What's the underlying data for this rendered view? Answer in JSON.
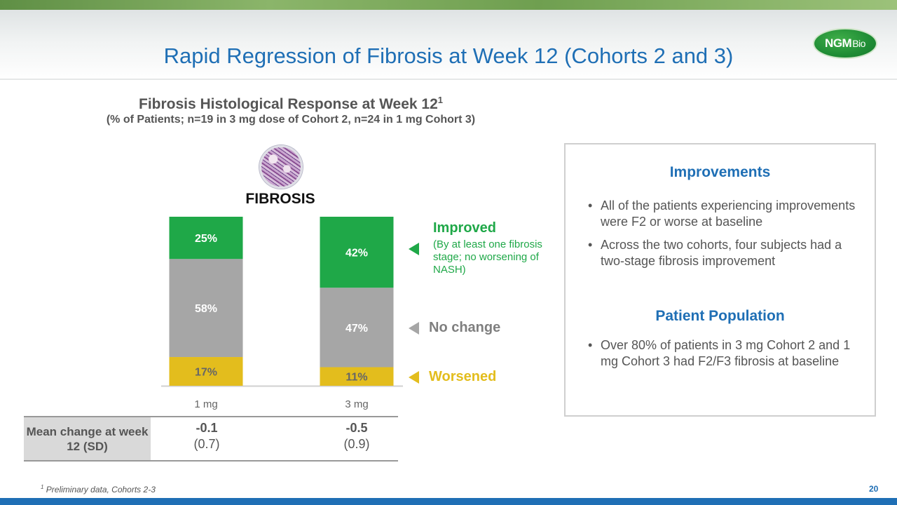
{
  "slide": {
    "title": "Rapid Regression of Fibrosis at Week 12 (Cohorts 2 and 3)",
    "logo_main": "NGM",
    "logo_suffix": "Bio",
    "page_number": "20",
    "footnote_marker": "1",
    "footnote": "Preliminary data, Cohorts 2-3"
  },
  "chart_data": {
    "type": "bar",
    "stacked": true,
    "title": "Fibrosis Histological Response at Week 12",
    "title_superscript": "1",
    "subtitle": "(% of Patients; n=19 in 3 mg dose of Cohort 2, n=24 in 1 mg Cohort 3)",
    "panel_label": "FIBROSIS",
    "categories": [
      "1 mg",
      "3 mg"
    ],
    "series": [
      {
        "name": "Worsened",
        "values": [
          17,
          11
        ],
        "labels": [
          "17%",
          "11%"
        ],
        "color": "#e3bd1d"
      },
      {
        "name": "No change",
        "values": [
          58,
          47
        ],
        "labels": [
          "58%",
          "47%"
        ],
        "color": "#a6a6a6"
      },
      {
        "name": "Improved",
        "values": [
          25,
          42
        ],
        "labels": [
          "25%",
          "42%"
        ],
        "color": "#1fa848"
      }
    ],
    "legend": {
      "improved": "Improved",
      "improved_note": "(By at least one fibrosis stage; no worsening of NASH)",
      "no_change": "No change",
      "worsened": "Worsened"
    },
    "colors": {
      "improved": "#1fa848",
      "no_change": "#7f7f7f",
      "worsened": "#e3bd1d",
      "no_change_arrow": "#a6a6a6"
    },
    "ylim": [
      0,
      100
    ],
    "legend_position": "right",
    "grid": false
  },
  "table": {
    "row_header": "Mean change at week 12 (SD)",
    "cells": [
      {
        "value": "-0.1",
        "sd": "(0.7)"
      },
      {
        "value": "-0.5",
        "sd": "(0.9)"
      }
    ]
  },
  "panel": {
    "improvements_heading": "Improvements",
    "improvements": [
      "All of the patients experiencing improvements were F2 or worse at baseline",
      "Across the two cohorts, four subjects had a two-stage fibrosis improvement"
    ],
    "population_heading": "Patient Population",
    "population": [
      "Over 80% of patients in 3 mg Cohort 2 and 1 mg Cohort 3 had F2/F3 fibrosis at baseline"
    ]
  }
}
